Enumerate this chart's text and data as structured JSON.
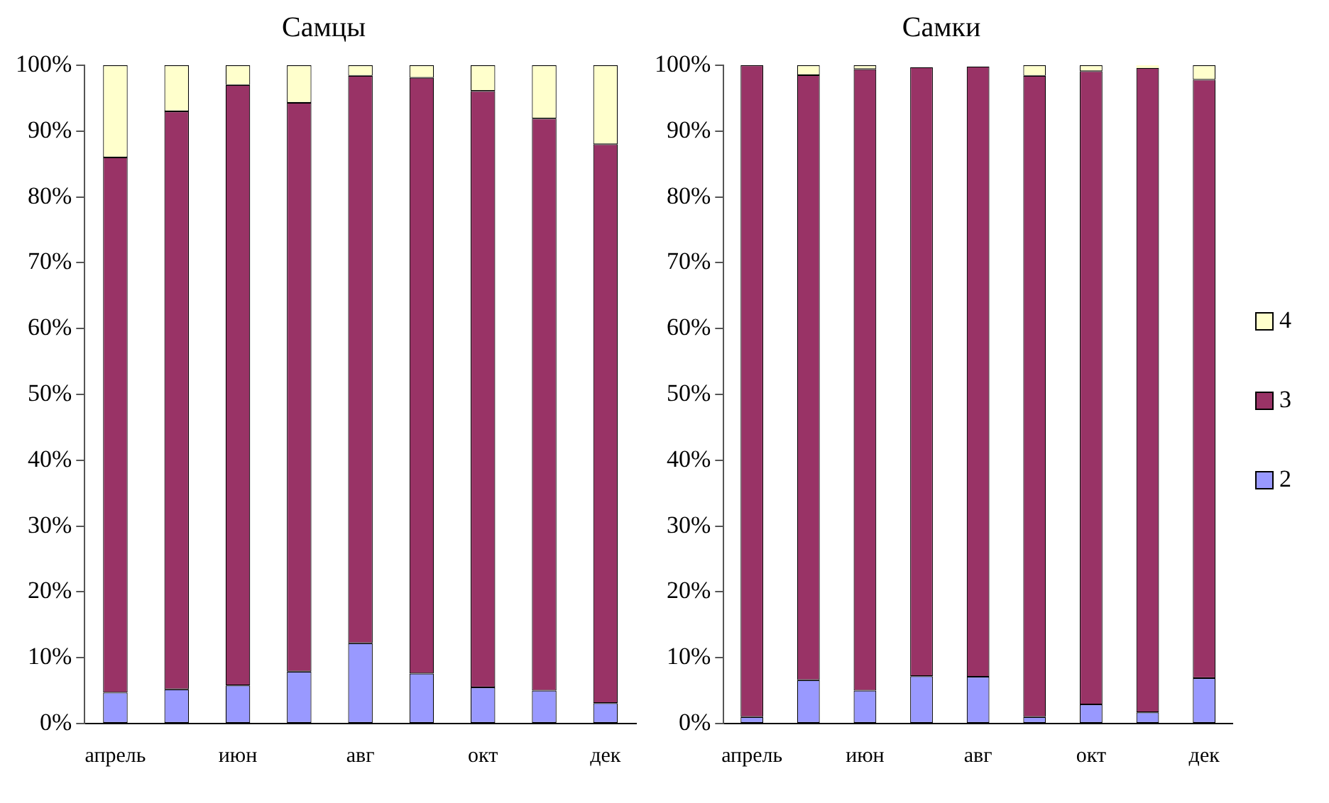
{
  "chart_data": [
    {
      "type": "bar",
      "title": "Самцы",
      "stacked": true,
      "categories": [
        "апрель",
        null,
        "июн",
        null,
        "авг",
        null,
        "окт",
        null,
        "дек"
      ],
      "series": [
        {
          "color": "#9999ff",
          "values": [
            4.7,
            5.2,
            5.8,
            7.9,
            12.2,
            7.6,
            5.5,
            5.0,
            3.1
          ]
        },
        {
          "color": "#993366",
          "values": [
            81.3,
            87.8,
            91.2,
            86.4,
            86.2,
            90.5,
            90.6,
            86.9,
            84.9
          ]
        },
        {
          "color": "#ffffcc",
          "values": [
            14,
            7,
            3,
            5.7,
            1.6,
            1.9,
            3.9,
            8.1,
            12
          ]
        }
      ],
      "ylim": [
        0,
        100
      ],
      "yticks": [
        {
          "value": 0,
          "label": "0%"
        },
        {
          "value": 10,
          "label": "10%"
        },
        {
          "value": 20,
          "label": "20%"
        },
        {
          "value": 30,
          "label": "30%"
        },
        {
          "value": 40,
          "label": "40%"
        },
        {
          "value": 50,
          "label": "50%"
        },
        {
          "value": 60,
          "label": "60%"
        },
        {
          "value": 70,
          "label": "70%"
        },
        {
          "value": 80,
          "label": "80%"
        },
        {
          "value": 90,
          "label": "90%"
        },
        {
          "value": 100,
          "label": "100%"
        }
      ],
      "grid": false,
      "legend": false
    },
    {
      "type": "bar",
      "title": "Самки",
      "stacked": true,
      "categories": [
        "апрель",
        null,
        "июн",
        null,
        "авг",
        null,
        "окт",
        null,
        "дек"
      ],
      "series": [
        {
          "name": "2",
          "color": "#9999ff",
          "values": [
            1.0,
            6.6,
            5.0,
            7.2,
            7.1,
            1.0,
            2.9,
            1.7,
            6.9
          ]
        },
        {
          "name": "3",
          "color": "#993366",
          "values": [
            99.0,
            91.9,
            94.4,
            92.5,
            92.7,
            97.4,
            96.2,
            97.9,
            90.9
          ]
        },
        {
          "name": "4",
          "color": "#ffffcc",
          "values": [
            0,
            1.5,
            0.6,
            null,
            null,
            1.6,
            0.9,
            0.4,
            2.2
          ]
        }
      ],
      "ylim": [
        0,
        100
      ],
      "yticks": [
        {
          "value": 0,
          "label": "0%"
        },
        {
          "value": 10,
          "label": "10%"
        },
        {
          "value": 20,
          "label": "20%"
        },
        {
          "value": 30,
          "label": "30%"
        },
        {
          "value": 40,
          "label": "40%"
        },
        {
          "value": 50,
          "label": "50%"
        },
        {
          "value": 60,
          "label": "60%"
        },
        {
          "value": 70,
          "label": "70%"
        },
        {
          "value": 80,
          "label": "80%"
        },
        {
          "value": 90,
          "label": "90%"
        },
        {
          "value": 100,
          "label": "100%"
        }
      ],
      "grid": false,
      "legend": "right"
    }
  ]
}
